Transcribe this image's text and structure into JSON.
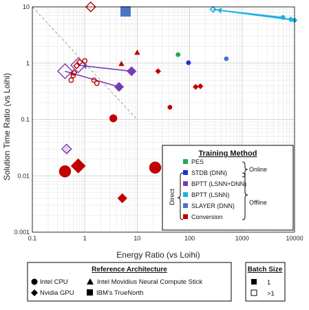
{
  "chart_data": {
    "type": "scatter",
    "xlabel": "Energy Ratio (vs Loihi)",
    "ylabel": "Solution Time Ratio (vs Loihi)",
    "xscale": "log",
    "yscale": "log",
    "xlim": [
      0.1,
      10000
    ],
    "ylim": [
      0.001,
      10
    ],
    "grid": true,
    "x_ticks": [
      "0.1",
      "1",
      "10",
      "100",
      "1000",
      "10000"
    ],
    "y_ticks": [
      "0.001",
      "0.01",
      "0.1",
      "1",
      "10"
    ],
    "colors": {
      "PES": "#1faa55",
      "STDB": "#1f2de0",
      "BPTT_LSNN_DNN": "#7a3cb0",
      "BPTT_LSNN": "#1ab0e8",
      "SLAYER": "#4676c4",
      "Conversion": "#c00000"
    },
    "points": [
      {
        "x": 1.3,
        "y": 10,
        "method": "Conversion",
        "arch": "Nvidia GPU",
        "batch": ">1",
        "size": "medium"
      },
      {
        "x": 6,
        "y": 8.3,
        "method": "SLAYER",
        "arch": "IBM TrueNorth",
        "batch": "1",
        "size": "large"
      },
      {
        "x": 10,
        "y": 1.55,
        "method": "Conversion",
        "arch": "Movidius",
        "batch": "1",
        "size": "small"
      },
      {
        "x": 5,
        "y": 0.98,
        "method": "Conversion",
        "arch": "Movidius",
        "batch": "1",
        "size": "small"
      },
      {
        "x": 25,
        "y": 0.72,
        "method": "Conversion",
        "arch": "Nvidia GPU",
        "batch": "1",
        "size": "small"
      },
      {
        "x": 60,
        "y": 1.42,
        "method": "PES",
        "arch": "Intel CPU",
        "batch": "1",
        "size": "small"
      },
      {
        "x": 95,
        "y": 1.02,
        "method": "STDB",
        "arch": "Intel CPU",
        "batch": "1",
        "size": "small"
      },
      {
        "x": 500,
        "y": 1.2,
        "method": "SLAYER",
        "arch": "Intel CPU",
        "batch": "1",
        "size": "small"
      },
      {
        "x": 130,
        "y": 0.38,
        "method": "Conversion",
        "arch": "Nvidia GPU",
        "batch": "1",
        "size": "small"
      },
      {
        "x": 160,
        "y": 0.39,
        "method": "Conversion",
        "arch": "Nvidia GPU",
        "batch": "1",
        "size": "small"
      },
      {
        "x": 42,
        "y": 0.165,
        "method": "Conversion",
        "arch": "Intel CPU",
        "batch": "1",
        "size": "small"
      },
      {
        "x": 3.5,
        "y": 0.105,
        "method": "Conversion",
        "arch": "Intel CPU",
        "batch": "1",
        "size": "medium"
      },
      {
        "x": 22,
        "y": 0.014,
        "method": "Conversion",
        "arch": "Intel CPU",
        "batch": "1",
        "size": "large"
      },
      {
        "x": 0.42,
        "y": 0.012,
        "method": "Conversion",
        "arch": "Intel CPU",
        "batch": "1",
        "size": "large"
      },
      {
        "x": 0.75,
        "y": 0.015,
        "method": "Conversion",
        "arch": "Nvidia GPU",
        "batch": "1",
        "size": "large"
      },
      {
        "x": 5.2,
        "y": 0.004,
        "method": "Conversion",
        "arch": "Nvidia GPU",
        "batch": "1",
        "size": "medium"
      },
      {
        "x": 0.45,
        "y": 0.03,
        "method": "BPTT_LSNN_DNN",
        "arch": "Nvidia GPU",
        "batch": ">1",
        "size": "medium",
        "hatched": true
      },
      {
        "x": 1.0,
        "y": 1.1,
        "method": "Conversion",
        "arch": "Intel CPU",
        "batch": ">1",
        "size": "small"
      },
      {
        "x": 1.5,
        "y": 0.5,
        "method": "Conversion",
        "arch": "Intel CPU",
        "batch": ">1",
        "size": "small"
      },
      {
        "x": 1.7,
        "y": 0.44,
        "method": "Conversion",
        "arch": "Intel CPU",
        "batch": ">1",
        "size": "small"
      },
      {
        "x": 0.55,
        "y": 0.5,
        "method": "Conversion",
        "arch": "Intel CPU",
        "batch": ">1",
        "size": "small"
      },
      {
        "x": 0.6,
        "y": 0.6,
        "method": "Conversion",
        "arch": "Intel CPU",
        "batch": ">1",
        "size": "small"
      },
      {
        "x": 0.62,
        "y": 0.68,
        "method": "Conversion",
        "arch": "Nvidia GPU",
        "batch": ">1",
        "size": "small"
      },
      {
        "x": 0.7,
        "y": 0.9,
        "method": "Conversion",
        "arch": "Nvidia GPU",
        "batch": ">1",
        "size": "small"
      },
      {
        "x": 0.8,
        "y": 1.05,
        "method": "Conversion",
        "arch": "Nvidia GPU",
        "batch": ">1",
        "size": "small"
      }
    ],
    "arrows": [
      {
        "method": "BPTT_LSNN",
        "from": {
          "x": 6000,
          "y": 6.5
        },
        "to": {
          "x": 280,
          "y": 9.0
        },
        "from_arch": "Intel CPU",
        "to_arch": "Nvidia GPU",
        "to_batch": ">1"
      },
      {
        "method": "BPTT_LSNN",
        "from": {
          "x": 8500,
          "y": 6.0
        },
        "to": {
          "x": 280,
          "y": 9.0
        },
        "from_arch": "Nvidia GPU",
        "to_arch": "Nvidia GPU",
        "to_batch": ">1"
      },
      {
        "method": "BPTT_LSNN",
        "from": {
          "x": 10000,
          "y": 5.8
        },
        "to": {
          "x": 280,
          "y": 9.0
        },
        "from_arch": "Nvidia GPU",
        "to_arch": "Nvidia GPU",
        "to_batch": ">1"
      },
      {
        "method": "BPTT_LSNN_DNN",
        "from": {
          "x": 7.8,
          "y": 0.72
        },
        "to": {
          "x": 0.75,
          "y": 0.92
        },
        "from_arch": "Nvidia GPU",
        "to_arch": "Nvidia GPU",
        "to_batch": ">1"
      },
      {
        "method": "BPTT_LSNN_DNN",
        "from": {
          "x": 4.5,
          "y": 0.38
        },
        "to": {
          "x": 0.42,
          "y": 0.72
        },
        "from_arch": "Nvidia GPU",
        "to_arch": "Nvidia GPU",
        "to_batch": ">1"
      }
    ],
    "diagonal": {
      "from": {
        "x": 0.1,
        "y": 10
      },
      "to": {
        "x": 10,
        "y": 0.1
      },
      "style": "dashed gray"
    }
  },
  "legend": {
    "title": "Training Method",
    "entries": [
      {
        "key": "PES",
        "label": "PES",
        "color": "#1faa55"
      },
      {
        "key": "STDB",
        "label": "STDB (DNN)",
        "color": "#1f2de0"
      },
      {
        "key": "BPTT_LSNN_DNN",
        "label": "BPTT (LSNN+DNN)",
        "color": "#7a3cb0"
      },
      {
        "key": "BPTT_LSNN",
        "label": "BPTT (LSNN)",
        "color": "#1ab0e8"
      },
      {
        "key": "SLAYER",
        "label": "SLAYER (DNN)",
        "color": "#4676c4"
      },
      {
        "key": "Conversion",
        "label": "Conversion",
        "color": "#c00000"
      }
    ],
    "group_online": "Online",
    "group_offline": "Offline",
    "group_direct": "Direct"
  },
  "reference_architecture": {
    "title": "Reference Architecture",
    "intel_cpu": "Intel CPU",
    "movidius": "Intel Movidius Neural Compute Stick",
    "nvidia_gpu": "Nvidia GPU",
    "truenorth": "IBM’s TrueNorth"
  },
  "batch_size": {
    "title": "Batch Size",
    "filled": "1",
    "open": ">1"
  }
}
